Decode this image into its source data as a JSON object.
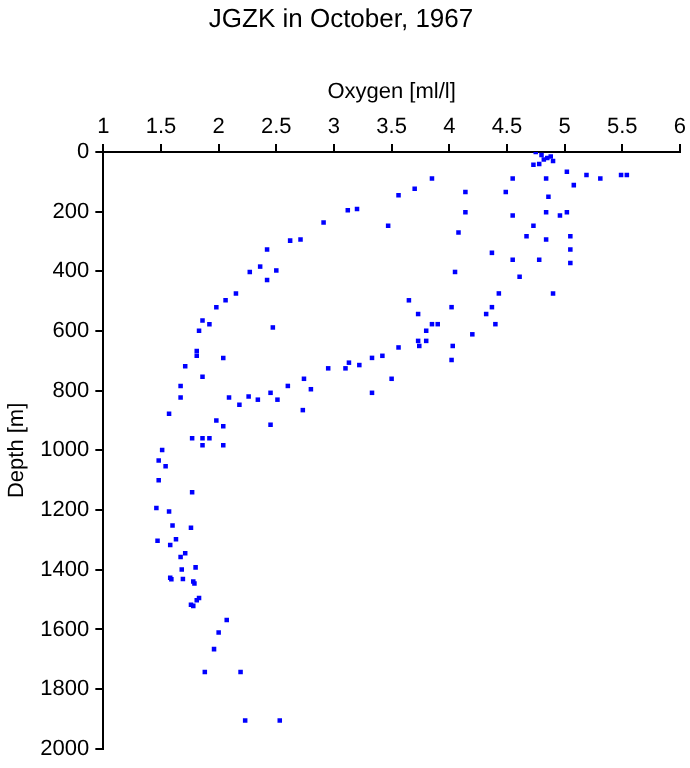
{
  "chart_data": {
    "type": "scatter",
    "title": "JGZK in October, 1967",
    "xlabel": "Oxygen [ml/l]",
    "ylabel": "Depth [m]",
    "xlim": [
      1,
      6
    ],
    "xticks": [
      1,
      1.5,
      2,
      2.5,
      3,
      3.5,
      4,
      4.5,
      5,
      5.5,
      6
    ],
    "ylim": [
      2000,
      0
    ],
    "yticks": [
      0,
      200,
      400,
      600,
      800,
      1000,
      1200,
      1400,
      1600,
      1800,
      2000
    ],
    "grid": false,
    "legend": false,
    "marker": "square",
    "series": [
      {
        "color": "#0000ff",
        "x": [
          4.75,
          4.8,
          4.85,
          4.9,
          4.78,
          4.82,
          4.88,
          4.73,
          4.84,
          4.86,
          4.84,
          4.84,
          4.78,
          5.02,
          5.19,
          5.31,
          5.49,
          5.54,
          5.08,
          5.02,
          5.05,
          5.05,
          5.05,
          4.9,
          4.73,
          4.67,
          4.55,
          4.43,
          4.32,
          4.2,
          4.02,
          3.85,
          3.8,
          4.55,
          4.49,
          4.14,
          4.14,
          4.08,
          4.37,
          4.61,
          4.37,
          4.4,
          4.05,
          4.55,
          4.96,
          3.85,
          3.7,
          3.56,
          3.2,
          3.12,
          2.91,
          2.71,
          2.62,
          2.42,
          2.36,
          2.27,
          2.5,
          2.42,
          2.15,
          2.06,
          1.98,
          1.86,
          1.83,
          1.92,
          3.47,
          2.47,
          3.65,
          3.73,
          3.8,
          3.9,
          3.73,
          1.81,
          1.81,
          1.71,
          1.86,
          2.04,
          1.67,
          1.67,
          1.57,
          1.51,
          1.48,
          1.54,
          1.48,
          1.46,
          1.57,
          1.6,
          1.47,
          1.63,
          1.76,
          1.58,
          1.67,
          1.71,
          1.68,
          1.8,
          1.58,
          1.69,
          1.78,
          1.83,
          1.76,
          1.77,
          1.86,
          1.77,
          1.86,
          1.92,
          2.04,
          1.98,
          2.04,
          2.09,
          2.18,
          2.26,
          2.34,
          2.45,
          2.51,
          2.6,
          2.74,
          2.8,
          2.73,
          2.45,
          2.95,
          3.1,
          3.22,
          3.33,
          3.42,
          3.5,
          3.56,
          3.74,
          4.03,
          4.02,
          3.33,
          3.13,
          1.59,
          1.79,
          1.81,
          1.78,
          2.07,
          2,
          1.96,
          1.88,
          2.19,
          2.23,
          2.53
        ],
        "values": [
          0,
          10,
          20,
          30,
          40,
          25,
          15,
          43,
          89,
          150,
          202,
          293,
          361,
          66,
          77,
          89,
          77,
          77,
          111,
          202,
          282,
          327,
          372,
          474,
          247,
          282,
          361,
          474,
          543,
          611,
          520,
          577,
          633,
          89,
          134,
          134,
          202,
          270,
          338,
          418,
          520,
          577,
          402,
          213,
          213,
          89,
          123,
          145,
          191,
          195,
          236,
          293,
          297,
          327,
          384,
          402,
          397,
          429,
          474,
          497,
          520,
          565,
          599,
          577,
          247,
          588,
          497,
          543,
          599,
          577,
          633,
          667,
          683,
          718,
          753,
          690,
          784,
          823,
          877,
          999,
          1034,
          1053,
          1100,
          1193,
          1205,
          1252,
          1303,
          1298,
          1259,
          1317,
          1357,
          1345,
          1399,
          1392,
          1427,
          1431,
          1439,
          1495,
          1517,
          1140,
          983,
          959,
          959,
          959,
          983,
          900,
          919,
          823,
          847,
          819,
          830,
          807,
          830,
          784,
          760,
          795,
          865,
          914,
          725,
          725,
          714,
          807,
          683,
          760,
          655,
          650,
          650,
          697,
          690,
          706,
          1432,
          1446,
          1502,
          1521,
          1568,
          1610,
          1666,
          1743,
          1743,
          1905,
          1905
        ]
      }
    ]
  }
}
